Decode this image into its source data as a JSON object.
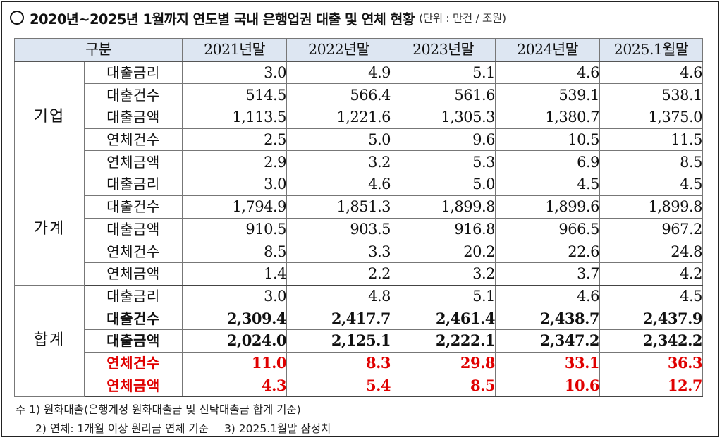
{
  "title": {
    "main": "2020년~2025년 1월까지 연도별 국내 은행업권 대출 및 연체 현황",
    "unit": "(단위 : 만건 / 조원)"
  },
  "table": {
    "header": [
      "구분",
      "2021년말",
      "2022년말",
      "2023년말",
      "2024년말",
      "2025.1월말"
    ],
    "groups": [
      {
        "name": "기업",
        "rows": [
          {
            "item": "대출금리",
            "values": [
              "3.0",
              "4.9",
              "5.1",
              "4.6",
              "4.6"
            ]
          },
          {
            "item": "대출건수",
            "values": [
              "514.5",
              "566.4",
              "561.6",
              "539.1",
              "538.1"
            ]
          },
          {
            "item": "대출금액",
            "values": [
              "1,113.5",
              "1,221.6",
              "1,305.3",
              "1,380.7",
              "1,375.0"
            ]
          },
          {
            "item": "연체건수",
            "values": [
              "2.5",
              "5.0",
              "9.6",
              "10.5",
              "11.5"
            ]
          },
          {
            "item": "연체금액",
            "values": [
              "2.9",
              "3.2",
              "5.3",
              "6.9",
              "8.5"
            ]
          }
        ]
      },
      {
        "name": "가계",
        "rows": [
          {
            "item": "대출금리",
            "values": [
              "3.0",
              "4.6",
              "5.0",
              "4.5",
              "4.5"
            ]
          },
          {
            "item": "대출건수",
            "values": [
              "1,794.9",
              "1,851.3",
              "1,899.8",
              "1,899.6",
              "1,899.8"
            ]
          },
          {
            "item": "대출금액",
            "values": [
              "910.5",
              "903.5",
              "916.8",
              "966.5",
              "967.2"
            ]
          },
          {
            "item": "연체건수",
            "values": [
              "8.5",
              "3.3",
              "20.2",
              "22.6",
              "24.8"
            ]
          },
          {
            "item": "연체금액",
            "values": [
              "1.4",
              "2.2",
              "3.2",
              "3.7",
              "4.2"
            ]
          }
        ]
      },
      {
        "name": "합계",
        "rows": [
          {
            "item": "대출금리",
            "values": [
              "3.0",
              "4.8",
              "5.1",
              "4.6",
              "4.5"
            ]
          },
          {
            "item": "대출건수",
            "values": [
              "2,309.4",
              "2,417.7",
              "2,461.4",
              "2,438.7",
              "2,437.9"
            ]
          },
          {
            "item": "대출금액",
            "values": [
              "2,024.0",
              "2,125.1",
              "2,222.1",
              "2,347.2",
              "2,342.2"
            ]
          },
          {
            "item": "연체건수",
            "values": [
              "11.0",
              "8.3",
              "29.8",
              "33.1",
              "36.3"
            ]
          },
          {
            "item": "연체금액",
            "values": [
              "4.3",
              "5.4",
              "8.5",
              "10.6",
              "12.7"
            ]
          }
        ]
      }
    ]
  },
  "notes": {
    "line1": "주 1) 원화대출(은행계정 원화대출금 및 신탁대출금 합계 기준)",
    "line2a": "2) 연체: 1개월 이상 원리금 연체 기준",
    "line2b": "3) 2025.1월말 잠정치"
  },
  "colors": {
    "header_bg": "#dde6f2",
    "highlight_red": "#e00000"
  }
}
